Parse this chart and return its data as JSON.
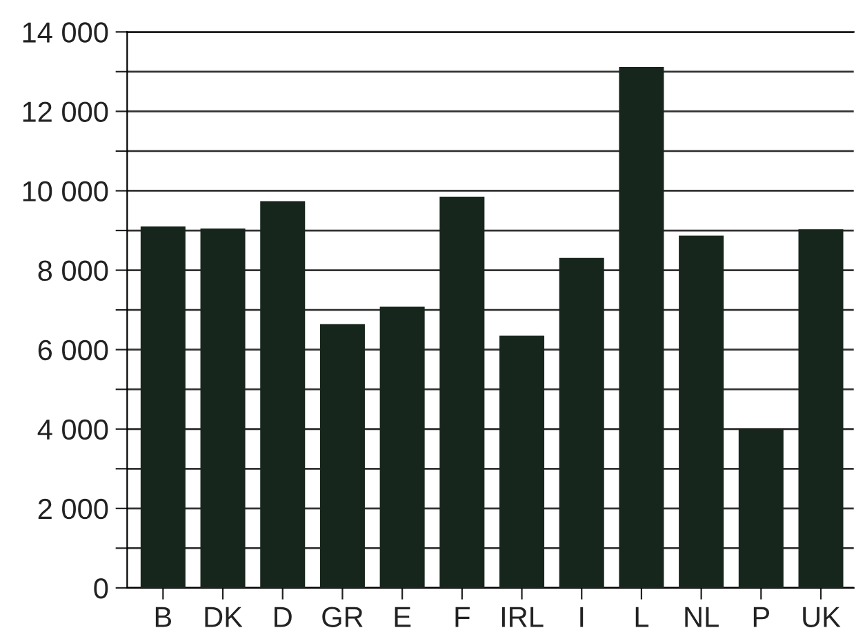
{
  "chart_data": {
    "type": "bar",
    "categories": [
      "B",
      "DK",
      "D",
      "GR",
      "E",
      "F",
      "IRL",
      "I",
      "L",
      "NL",
      "P",
      "UK"
    ],
    "values": [
      9100,
      9050,
      9740,
      6640,
      7080,
      9850,
      6350,
      8310,
      13120,
      8870,
      4000,
      9030
    ],
    "color": "#17261c",
    "ylim": [
      0,
      14000
    ],
    "yticks": [
      0,
      {
        "value": 1000,
        "label": null
      },
      {
        "value": 2000,
        "label": "2 000"
      },
      {
        "value": 3000,
        "label": null
      },
      {
        "value": 4000,
        "label": "4 000"
      },
      {
        "value": 5000,
        "label": null
      },
      {
        "value": 6000,
        "label": "6 000"
      },
      {
        "value": 7000,
        "label": null
      },
      {
        "value": 8000,
        "label": "8 000"
      },
      {
        "value": 9000,
        "label": null
      },
      {
        "value": 10000,
        "label": "10 000"
      },
      {
        "value": 11000,
        "label": null
      },
      {
        "value": 12000,
        "label": "12 000"
      },
      {
        "value": 13000,
        "label": null
      },
      {
        "value": 14000,
        "label": "14 000"
      }
    ],
    "grid": "y"
  }
}
